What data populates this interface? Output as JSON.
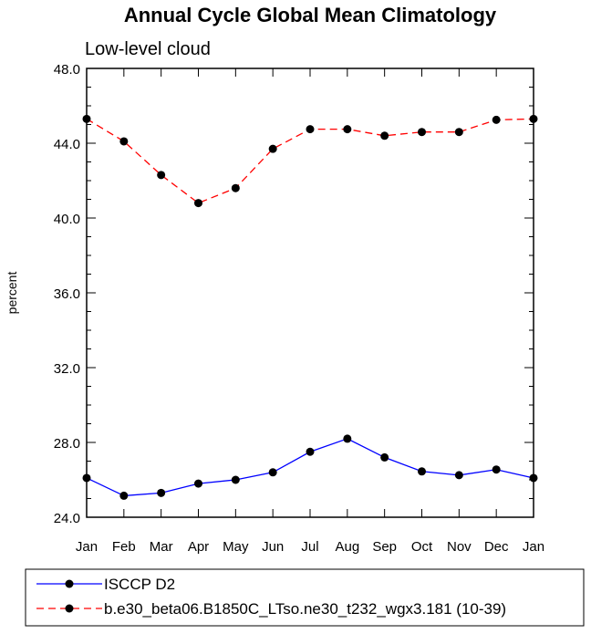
{
  "chart_data": {
    "type": "line",
    "title": "Annual Cycle Global Mean Climatology",
    "subtitle": "Low-level cloud",
    "xlabel": "",
    "ylabel": "percent",
    "categories": [
      "Jan",
      "Feb",
      "Mar",
      "Apr",
      "May",
      "Jun",
      "Jul",
      "Aug",
      "Sep",
      "Oct",
      "Nov",
      "Dec",
      "Jan"
    ],
    "ylim": [
      24.0,
      48.0
    ],
    "yticks": [
      "24.0",
      "28.0",
      "32.0",
      "36.0",
      "40.0",
      "44.0",
      "48.0"
    ],
    "grid": false,
    "legend_position": "bottom",
    "series": [
      {
        "name": "ISCCP D2",
        "color": "#0000ff",
        "line_style": "solid",
        "marker": "filled-circle",
        "values": [
          26.1,
          25.15,
          25.3,
          25.8,
          26.0,
          26.4,
          27.5,
          28.2,
          27.2,
          26.45,
          26.25,
          26.55,
          26.1
        ]
      },
      {
        "name": "b.e30_beta06.B1850C_LTso.ne30_t232_wgx3.181 (10-39)",
        "color": "#ff0000",
        "line_style": "dashed",
        "marker": "filled-circle",
        "values": [
          45.3,
          44.1,
          42.3,
          40.8,
          41.6,
          43.7,
          44.75,
          44.75,
          44.4,
          44.6,
          44.6,
          45.25,
          45.3
        ]
      }
    ]
  }
}
